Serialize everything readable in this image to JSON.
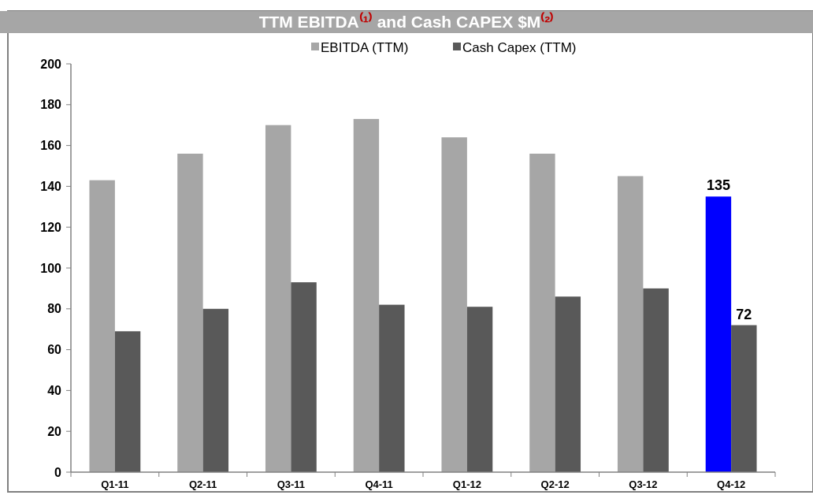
{
  "chart_data": {
    "type": "bar",
    "title": "TTM EBITDA⁽¹⁾ and Cash CAPEX $M⁽²⁾",
    "categories": [
      "Q1-11",
      "Q2-11",
      "Q3-11",
      "Q4-11",
      "Q1-12",
      "Q2-12",
      "Q3-12",
      "Q4-12"
    ],
    "series": [
      {
        "name": "EBITDA (TTM)",
        "color": "#a6a6a6",
        "colors": [
          "#a6a6a6",
          "#a6a6a6",
          "#a6a6a6",
          "#a6a6a6",
          "#a6a6a6",
          "#a6a6a6",
          "#a6a6a6",
          "#0000ff"
        ],
        "values": [
          143,
          156,
          170,
          173,
          164,
          156,
          145,
          135
        ],
        "value_labels": [
          null,
          null,
          null,
          null,
          null,
          null,
          null,
          "135"
        ]
      },
      {
        "name": "Cash Capex (TTM)",
        "color": "#595959",
        "values": [
          69,
          80,
          93,
          82,
          81,
          86,
          90,
          72
        ],
        "value_labels": [
          null,
          null,
          null,
          null,
          null,
          null,
          null,
          "72"
        ]
      }
    ],
    "ylim": [
      0,
      200
    ],
    "yticks": [
      0,
      20,
      40,
      60,
      80,
      100,
      120,
      140,
      160,
      180,
      200
    ],
    "grid": false,
    "legend": "top"
  }
}
